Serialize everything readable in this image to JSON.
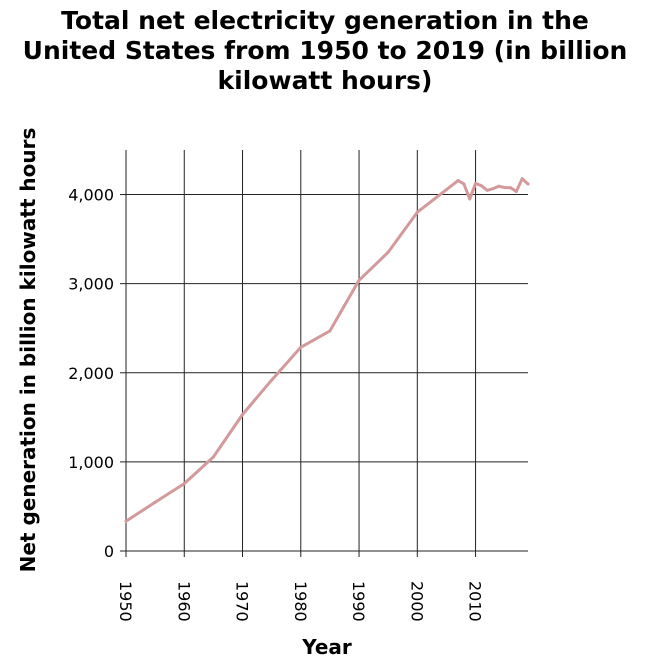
{
  "chart_data": {
    "type": "line",
    "title_lines": [
      "Total net electricity generation in the",
      "United States from 1950 to 2019 (in billion",
      "kilowatt hours)"
    ],
    "xlabel": "Year",
    "ylabel": "Net generation in billion kilowatt hours",
    "xlim": [
      1950,
      2019
    ],
    "ylim": [
      0,
      4500
    ],
    "x_ticks": [
      1950,
      1960,
      1970,
      1980,
      1990,
      2000,
      2010
    ],
    "x_tick_labels": [
      "1950",
      "1960",
      "1970",
      "1980",
      "1990",
      "2000",
      "2010"
    ],
    "y_ticks": [
      0,
      1000,
      2000,
      3000,
      4000
    ],
    "y_tick_labels": [
      "0",
      "1,000",
      "2,000",
      "3,000",
      "4,000"
    ],
    "grid": true,
    "line_color": "#d4999b",
    "series": [
      {
        "x": [
          1950,
          1955,
          1960,
          1965,
          1970,
          1975,
          1980,
          1985,
          1990,
          1995,
          2000,
          2005,
          2007,
          2008,
          2009,
          2010,
          2011,
          2012,
          2013,
          2014,
          2015,
          2016,
          2017,
          2018,
          2019
        ],
        "values": [
          334,
          547,
          756,
          1055,
          1532,
          1918,
          2286,
          2470,
          3038,
          3353,
          3802,
          4055,
          4157,
          4119,
          3950,
          4125,
          4100,
          4048,
          4066,
          4093,
          4078,
          4077,
          4034,
          4178,
          4118
        ]
      }
    ]
  }
}
